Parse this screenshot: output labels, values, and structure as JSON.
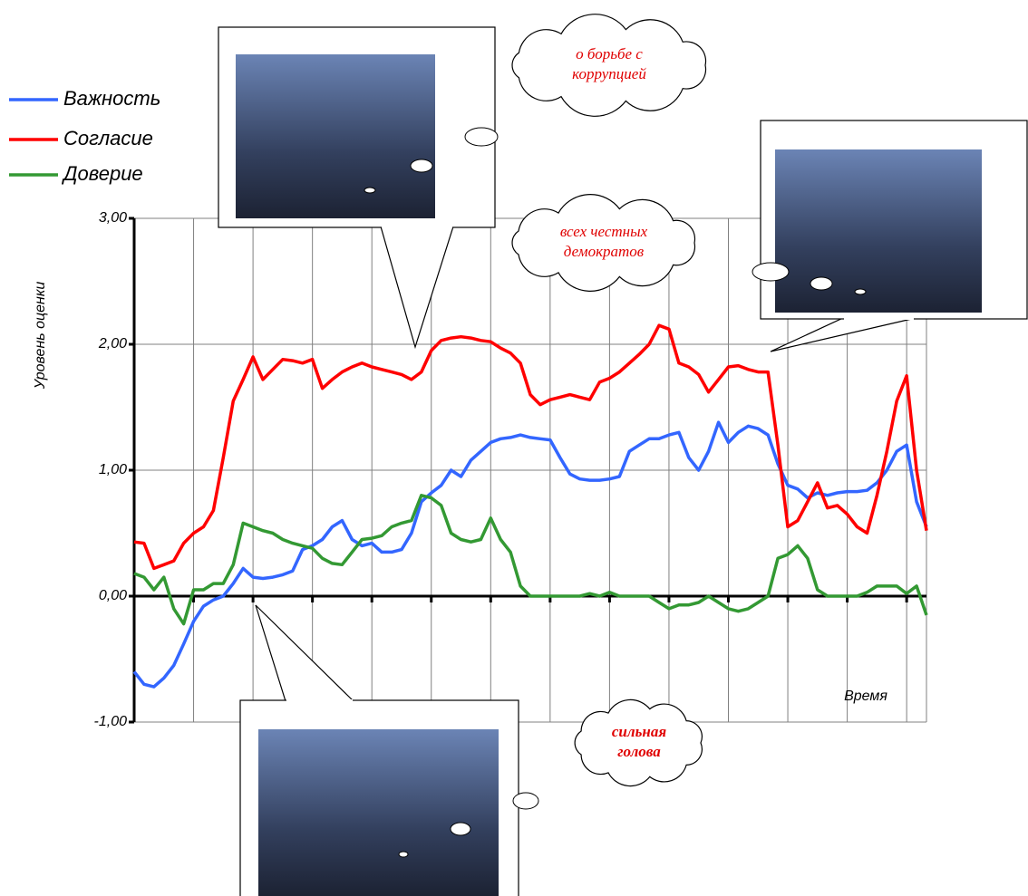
{
  "chart_data": {
    "type": "line",
    "y_label": "Уровень оценки",
    "x_label": "Время",
    "x": [
      0,
      1,
      2,
      3,
      4,
      5,
      6,
      7,
      8,
      9,
      10,
      11,
      12,
      13,
      14,
      15,
      16,
      17,
      18,
      19,
      20,
      21,
      22,
      23,
      24,
      25,
      26,
      27,
      28,
      29,
      30,
      31,
      32,
      33,
      34,
      35,
      36,
      37,
      38,
      39,
      40,
      41,
      42,
      43,
      44,
      45,
      46,
      47,
      48,
      49,
      50,
      51,
      52,
      53,
      54,
      55,
      56,
      57,
      58,
      59,
      60,
      61,
      62,
      63,
      64,
      65,
      66,
      67,
      68,
      69,
      70,
      71,
      72,
      73,
      74,
      75,
      76,
      77,
      78,
      79,
      80
    ],
    "xlim": [
      0,
      80
    ],
    "xticks": [
      0,
      6,
      12,
      18,
      24,
      30,
      36,
      42,
      48,
      54,
      60,
      66,
      72,
      78
    ],
    "ylim": [
      -1,
      3
    ],
    "yticks": [
      {
        "value": -1,
        "label": "-1,00"
      },
      {
        "value": 0,
        "label": "0,00"
      },
      {
        "value": 1,
        "label": "1,00"
      },
      {
        "value": 2,
        "label": "2,00"
      },
      {
        "value": 3,
        "label": "3,00"
      }
    ],
    "grid": true,
    "legend": "top-left",
    "series": [
      {
        "name": "Важность",
        "color": "#3366ff",
        "values": [
          -0.6,
          -0.7,
          -0.72,
          -0.65,
          -0.55,
          -0.38,
          -0.2,
          -0.08,
          -0.03,
          0.0,
          0.1,
          0.22,
          0.15,
          0.14,
          0.15,
          0.17,
          0.2,
          0.37,
          0.4,
          0.45,
          0.55,
          0.6,
          0.45,
          0.4,
          0.42,
          0.35,
          0.35,
          0.37,
          0.5,
          0.75,
          0.82,
          0.88,
          1.0,
          0.95,
          1.08,
          1.15,
          1.22,
          1.25,
          1.26,
          1.28,
          1.26,
          1.25,
          1.24,
          1.1,
          0.97,
          0.93,
          0.92,
          0.92,
          0.93,
          0.95,
          1.15,
          1.2,
          1.25,
          1.25,
          1.28,
          1.3,
          1.1,
          1.0,
          1.15,
          1.38,
          1.22,
          1.3,
          1.35,
          1.33,
          1.28,
          1.05,
          0.88,
          0.85,
          0.78,
          0.82,
          0.8,
          0.82,
          0.83,
          0.83,
          0.84,
          0.9,
          1.0,
          1.15,
          1.2,
          0.75,
          0.55
        ]
      },
      {
        "name": "Согласие",
        "color": "#ff0000",
        "values": [
          0.43,
          0.42,
          0.22,
          0.25,
          0.28,
          0.42,
          0.5,
          0.55,
          0.68,
          1.1,
          1.55,
          1.72,
          1.9,
          1.72,
          1.8,
          1.88,
          1.87,
          1.85,
          1.88,
          1.65,
          1.72,
          1.78,
          1.82,
          1.85,
          1.82,
          1.8,
          1.78,
          1.76,
          1.72,
          1.78,
          1.95,
          2.03,
          2.05,
          2.06,
          2.05,
          2.03,
          2.02,
          1.97,
          1.93,
          1.85,
          1.6,
          1.52,
          1.56,
          1.58,
          1.6,
          1.58,
          1.56,
          1.7,
          1.73,
          1.78,
          1.85,
          1.92,
          2.0,
          2.15,
          2.12,
          1.85,
          1.82,
          1.76,
          1.62,
          1.72,
          1.82,
          1.83,
          1.8,
          1.78,
          1.78,
          1.2,
          0.55,
          0.6,
          0.75,
          0.9,
          0.7,
          0.72,
          0.65,
          0.55,
          0.5,
          0.8,
          1.15,
          1.55,
          1.75,
          1.0,
          0.52
        ]
      },
      {
        "name": "Доверие",
        "color": "#339933",
        "values": [
          0.18,
          0.15,
          0.05,
          0.15,
          -0.1,
          -0.22,
          0.05,
          0.05,
          0.1,
          0.1,
          0.25,
          0.58,
          0.55,
          0.52,
          0.5,
          0.45,
          0.42,
          0.4,
          0.38,
          0.3,
          0.26,
          0.25,
          0.35,
          0.45,
          0.46,
          0.48,
          0.55,
          0.58,
          0.6,
          0.8,
          0.78,
          0.72,
          0.5,
          0.45,
          0.43,
          0.45,
          0.62,
          0.45,
          0.35,
          0.08,
          0.0,
          0.0,
          0.0,
          0.0,
          0.0,
          0.0,
          0.02,
          0.0,
          0.03,
          0.0,
          0.0,
          0.0,
          0.0,
          -0.05,
          -0.1,
          -0.07,
          -0.07,
          -0.05,
          0.0,
          -0.05,
          -0.1,
          -0.12,
          -0.1,
          -0.05,
          0.0,
          0.3,
          0.33,
          0.4,
          0.3,
          0.05,
          0.0,
          0.0,
          0.0,
          0.0,
          0.03,
          0.08,
          0.08,
          0.08,
          0.02,
          0.08,
          -0.15
        ]
      }
    ],
    "annotations": [
      {
        "lines": [
          "о борьбе с",
          "коррупцией"
        ]
      },
      {
        "lines": [
          "всех честных",
          "демократов"
        ]
      },
      {
        "lines": [
          "сильная",
          "голова"
        ]
      }
    ]
  }
}
